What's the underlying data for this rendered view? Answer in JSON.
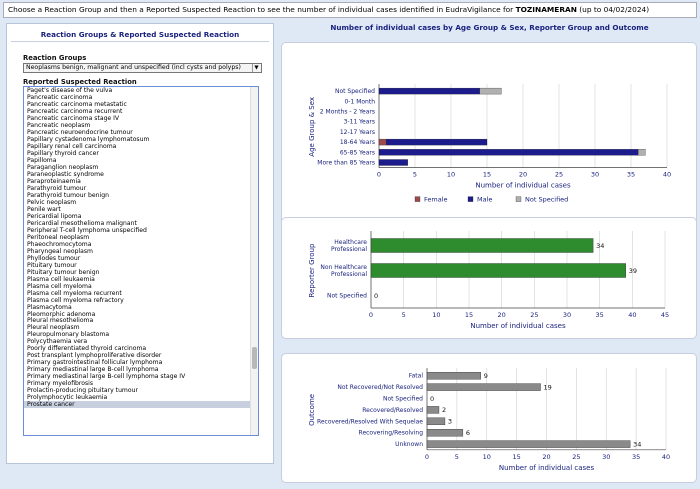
{
  "header": {
    "text_before": "Choose a Reaction Group and then a Reported Suspected Reaction to see the number of individual cases identified in EudraVigilance for ",
    "product": "TOZINAMERAN",
    "text_after": " (up to 04/02/2024)"
  },
  "left_panel": {
    "title": "Reaction Groups & Reported Suspected Reaction",
    "reaction_groups_label": "Reaction Groups",
    "reaction_group_selected": "Neoplasms benign, malignant and unspecified (incl cysts and polyps)",
    "reported_reaction_label": "Reported Suspected Reaction",
    "selected_reaction": "Prostate cancer",
    "reactions": [
      "Paget's disease of the vulva",
      "Pancreatic carcinoma",
      "Pancreatic carcinoma metastatic",
      "Pancreatic carcinoma recurrent",
      "Pancreatic carcinoma stage IV",
      "Pancreatic neoplasm",
      "Pancreatic neuroendocrine tumour",
      "Papillary cystadenoma lymphomatosum",
      "Papillary renal cell carcinoma",
      "Papillary thyroid cancer",
      "Papilloma",
      "Paraganglion neoplasm",
      "Paraneoplastic syndrome",
      "Paraproteinaemia",
      "Parathyroid tumour",
      "Parathyroid tumour benign",
      "Pelvic neoplasm",
      "Penile wart",
      "Pericardial lipoma",
      "Pericardial mesothelioma malignant",
      "Peripheral T-cell lymphoma unspecified",
      "Peritoneal neoplasm",
      "Phaeochromocytoma",
      "Pharyngeal neoplasm",
      "Phyllodes tumour",
      "Pituitary tumour",
      "Pituitary tumour benign",
      "Plasma cell leukaemia",
      "Plasma cell myeloma",
      "Plasma cell myeloma recurrent",
      "Plasma cell myeloma refractory",
      "Plasmacytoma",
      "Pleomorphic adenoma",
      "Pleural mesothelioma",
      "Pleural neoplasm",
      "Pleuropulmonary blastoma",
      "Polycythaemia vera",
      "Poorly differentiated thyroid carcinoma",
      "Post transplant lymphoproliferative disorder",
      "Primary gastrointestinal follicular lymphoma",
      "Primary mediastinal large B-cell lymphoma",
      "Primary mediastinal large B-cell lymphoma stage IV",
      "Primary myelofibrosis",
      "Prolactin-producing pituitary tumour",
      "Prolymphocytic leukaemia",
      "Prostate cancer"
    ]
  },
  "right_panel": {
    "title": "Number of individual cases by Age Group & Sex, Reporter Group and Outcome"
  },
  "colors": {
    "female": "#9c4a4a",
    "male": "#1c1c8c",
    "not_specified": "#b0b0b0",
    "reporter": "#2e8b2e",
    "outcome": "#8a8a8a"
  },
  "chart_data": [
    {
      "type": "bar",
      "orientation": "horizontal",
      "stacked": true,
      "ylabel": "Age Group & Sex",
      "xlabel": "Number of individual cases",
      "categories": [
        "Not Specified",
        "0-1 Month",
        "2 Months - 2 Years",
        "3-11 Years",
        "12-17 Years",
        "18-64 Years",
        "65-85 Years",
        "More than 85 Years"
      ],
      "series": [
        {
          "name": "Female",
          "values": [
            0,
            0,
            0,
            0,
            0,
            1,
            0,
            0
          ]
        },
        {
          "name": "Male",
          "values": [
            14,
            0,
            0,
            0,
            0,
            14,
            36,
            4
          ]
        },
        {
          "name": "Not Specified",
          "values": [
            3,
            0,
            0,
            0,
            0,
            0,
            1,
            0
          ]
        }
      ],
      "xlim": [
        0,
        40
      ],
      "xticks": [
        0,
        5,
        10,
        15,
        20,
        25,
        30,
        35,
        40
      ],
      "legend": "bottom"
    },
    {
      "type": "bar",
      "orientation": "horizontal",
      "ylabel": "Reporter Group",
      "xlabel": "Number of individual cases",
      "categories": [
        "Healthcare Professional",
        "Non Healthcare Professional",
        "Not Specified"
      ],
      "values": [
        34,
        39,
        0
      ],
      "xlim": [
        0,
        45
      ],
      "xticks": [
        0,
        5,
        10,
        15,
        20,
        25,
        30,
        35,
        40,
        45
      ]
    },
    {
      "type": "bar",
      "orientation": "horizontal",
      "ylabel": "Outcome",
      "xlabel": "Number of individual cases",
      "categories": [
        "Fatal",
        "Not Recovered/Not Resolved",
        "Not Specified",
        "Recovered/Resolved",
        "Recovered/Resolved With Sequelae",
        "Recovering/Resolving",
        "Unknown"
      ],
      "values": [
        9,
        19,
        0,
        2,
        3,
        6,
        34
      ],
      "xlim": [
        0,
        40
      ],
      "xticks": [
        0,
        5,
        10,
        15,
        20,
        25,
        30,
        35,
        40
      ]
    }
  ]
}
